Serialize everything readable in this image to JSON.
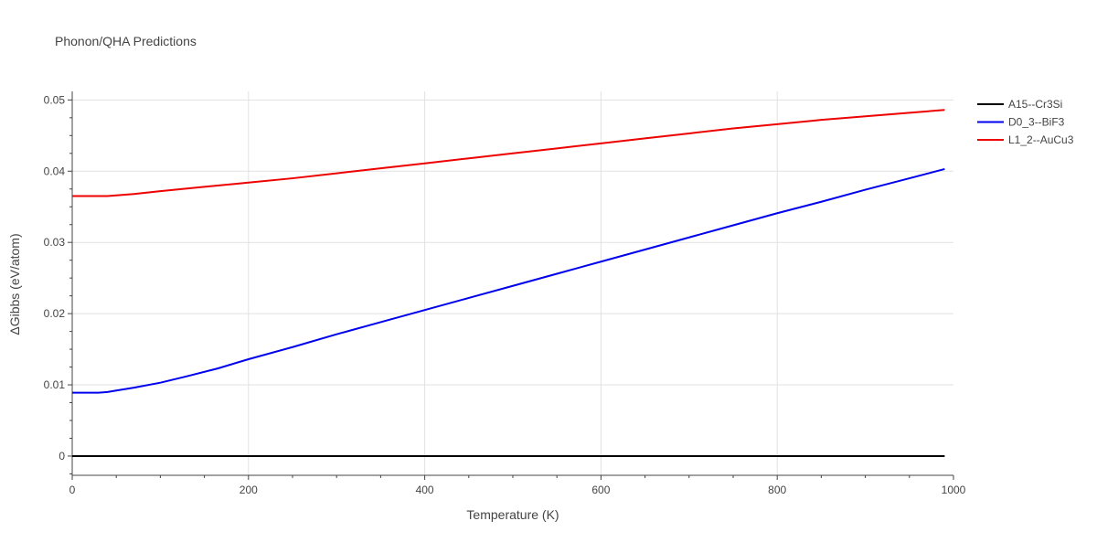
{
  "chart_data": {
    "type": "line",
    "title": "Phonon/QHA Predictions",
    "xlabel": "Temperature (K)",
    "ylabel": "ΔGibbs (eV/atom)",
    "xlim": [
      0,
      1000
    ],
    "ylim": [
      -0.0027,
      0.0512
    ],
    "x_ticks": [
      0,
      200,
      400,
      600,
      800,
      1000
    ],
    "x_tick_labels": [
      "0",
      "200",
      "400",
      "600",
      "800",
      "1000"
    ],
    "y_ticks": [
      0,
      0.01,
      0.02,
      0.03,
      0.04,
      0.05
    ],
    "y_tick_labels": [
      "0",
      "0.01",
      "0.02",
      "0.03",
      "0.04",
      "0.05"
    ],
    "grid": true,
    "legend_position": "right",
    "series": [
      {
        "name": "A15--Cr3Si",
        "color": "#000000",
        "x": [
          0,
          100,
          200,
          300,
          400,
          500,
          600,
          700,
          800,
          900,
          990
        ],
        "y": [
          0,
          0,
          0,
          0,
          0,
          0,
          0,
          0,
          0,
          0,
          0
        ]
      },
      {
        "name": "D0_3--BiF3",
        "color": "#0000ee",
        "x": [
          0,
          30,
          40,
          50,
          70,
          100,
          130,
          165,
          200,
          250,
          300,
          350,
          400,
          450,
          500,
          550,
          600,
          650,
          700,
          750,
          800,
          850,
          900,
          950,
          990
        ],
        "y": [
          0.0089,
          0.0089,
          0.009,
          0.0092,
          0.0096,
          0.0103,
          0.0112,
          0.0123,
          0.0136,
          0.0153,
          0.0171,
          0.0188,
          0.0205,
          0.0222,
          0.0239,
          0.0256,
          0.0273,
          0.029,
          0.0307,
          0.0324,
          0.0341,
          0.0357,
          0.0374,
          0.039,
          0.0403
        ]
      },
      {
        "name": "L1_2--AuCu3",
        "color": "#ee0000",
        "x": [
          0,
          40,
          50,
          70,
          100,
          150,
          200,
          250,
          300,
          350,
          400,
          450,
          500,
          550,
          600,
          650,
          700,
          750,
          800,
          850,
          900,
          950,
          990
        ],
        "y": [
          0.0365,
          0.0365,
          0.0366,
          0.0368,
          0.0372,
          0.0378,
          0.0384,
          0.039,
          0.0397,
          0.0404,
          0.0411,
          0.0418,
          0.0425,
          0.0432,
          0.0439,
          0.0446,
          0.0453,
          0.046,
          0.0466,
          0.0472,
          0.0477,
          0.0482,
          0.0486
        ]
      }
    ]
  }
}
